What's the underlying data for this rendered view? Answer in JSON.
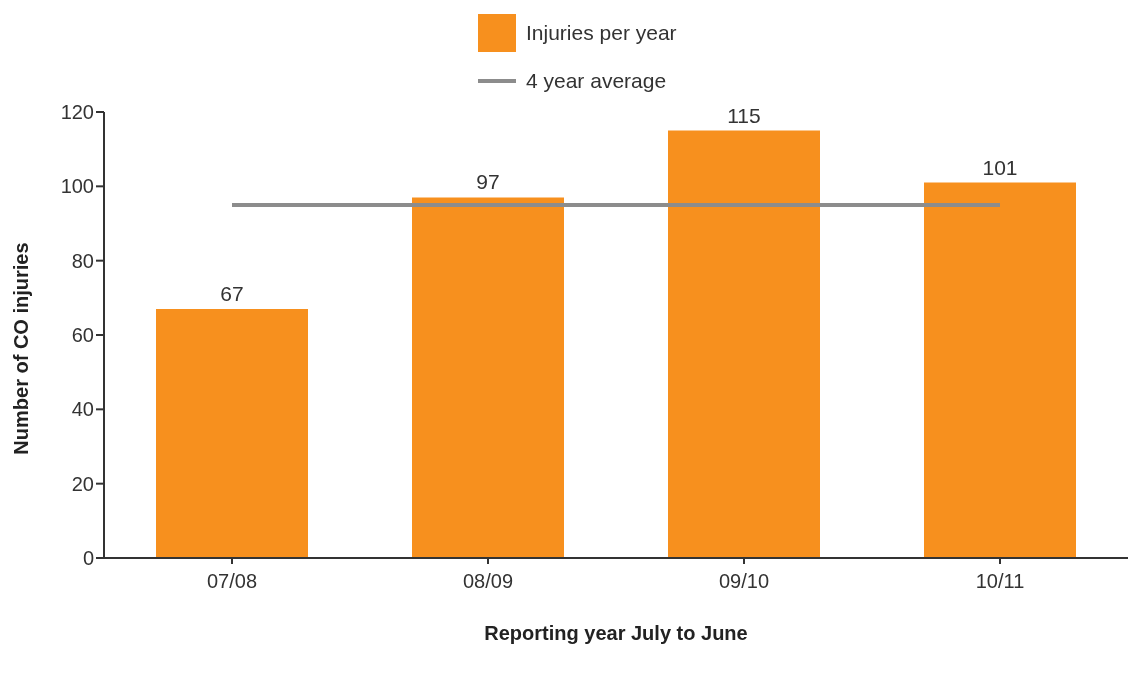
{
  "chart_data": {
    "type": "bar",
    "xlabel": "Reporting year July to June",
    "ylabel": "Number of CO injuries",
    "categories": [
      "07/08",
      "08/09",
      "09/10",
      "10/11"
    ],
    "series": [
      {
        "name": "Injuries per year",
        "color": "#f7901e",
        "values": [
          67,
          97,
          115,
          101
        ],
        "value_labels": [
          "67",
          "97",
          "115",
          "101"
        ]
      },
      {
        "name": "4 year average",
        "type": "line",
        "color": "#8c8c8c",
        "values": [
          95,
          95,
          95,
          95
        ]
      }
    ],
    "ylim": [
      0,
      120
    ],
    "yticks": [
      0,
      20,
      40,
      60,
      80,
      100,
      120
    ],
    "grid": false,
    "legend": "top",
    "marker": "none",
    "line_style": "solid"
  }
}
